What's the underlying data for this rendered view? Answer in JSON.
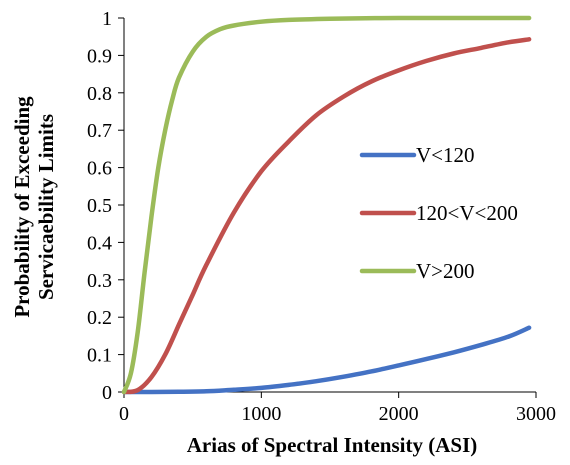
{
  "chart_data": {
    "type": "line",
    "xlabel": "Arias of Spectral Intensity (ASI)",
    "ylabel_lines": [
      "Probability of Exceeding",
      "Servicaebility Limits"
    ],
    "xlim": [
      0,
      3000
    ],
    "ylim": [
      0,
      1
    ],
    "xticks": [
      0,
      1000,
      2000,
      3000
    ],
    "yticks": [
      0,
      0.1,
      0.2,
      0.3,
      0.4,
      0.5,
      0.6,
      0.7,
      0.8,
      0.9,
      1
    ],
    "grid": false,
    "legend_position": "right",
    "series": [
      {
        "name": "V<120",
        "color": "#4472C4",
        "x": [
          0,
          200,
          400,
          600,
          800,
          1000,
          1200,
          1400,
          1600,
          1800,
          2000,
          2200,
          2400,
          2600,
          2800,
          2950
        ],
        "y": [
          0,
          0,
          0.0005,
          0.002,
          0.006,
          0.011,
          0.019,
          0.029,
          0.041,
          0.055,
          0.071,
          0.088,
          0.106,
          0.126,
          0.148,
          0.172
        ]
      },
      {
        "name": "120<V<200",
        "color": "#C0504D",
        "x": [
          0,
          100,
          200,
          300,
          400,
          500,
          600,
          800,
          1000,
          1200,
          1400,
          1600,
          1800,
          2000,
          2200,
          2400,
          2600,
          2800,
          2950
        ],
        "y": [
          0,
          0.005,
          0.04,
          0.1,
          0.18,
          0.26,
          0.34,
          0.48,
          0.59,
          0.67,
          0.74,
          0.79,
          0.83,
          0.86,
          0.885,
          0.905,
          0.92,
          0.935,
          0.943
        ]
      },
      {
        "name": "V>200",
        "color": "#9BBB59",
        "x": [
          0,
          50,
          100,
          150,
          200,
          250,
          300,
          350,
          400,
          500,
          600,
          700,
          800,
          1000,
          1200,
          1500,
          2000,
          2500,
          2950
        ],
        "y": [
          0,
          0.05,
          0.16,
          0.32,
          0.47,
          0.6,
          0.7,
          0.78,
          0.84,
          0.91,
          0.95,
          0.97,
          0.98,
          0.99,
          0.995,
          0.998,
          1,
          1,
          1
        ]
      }
    ]
  }
}
